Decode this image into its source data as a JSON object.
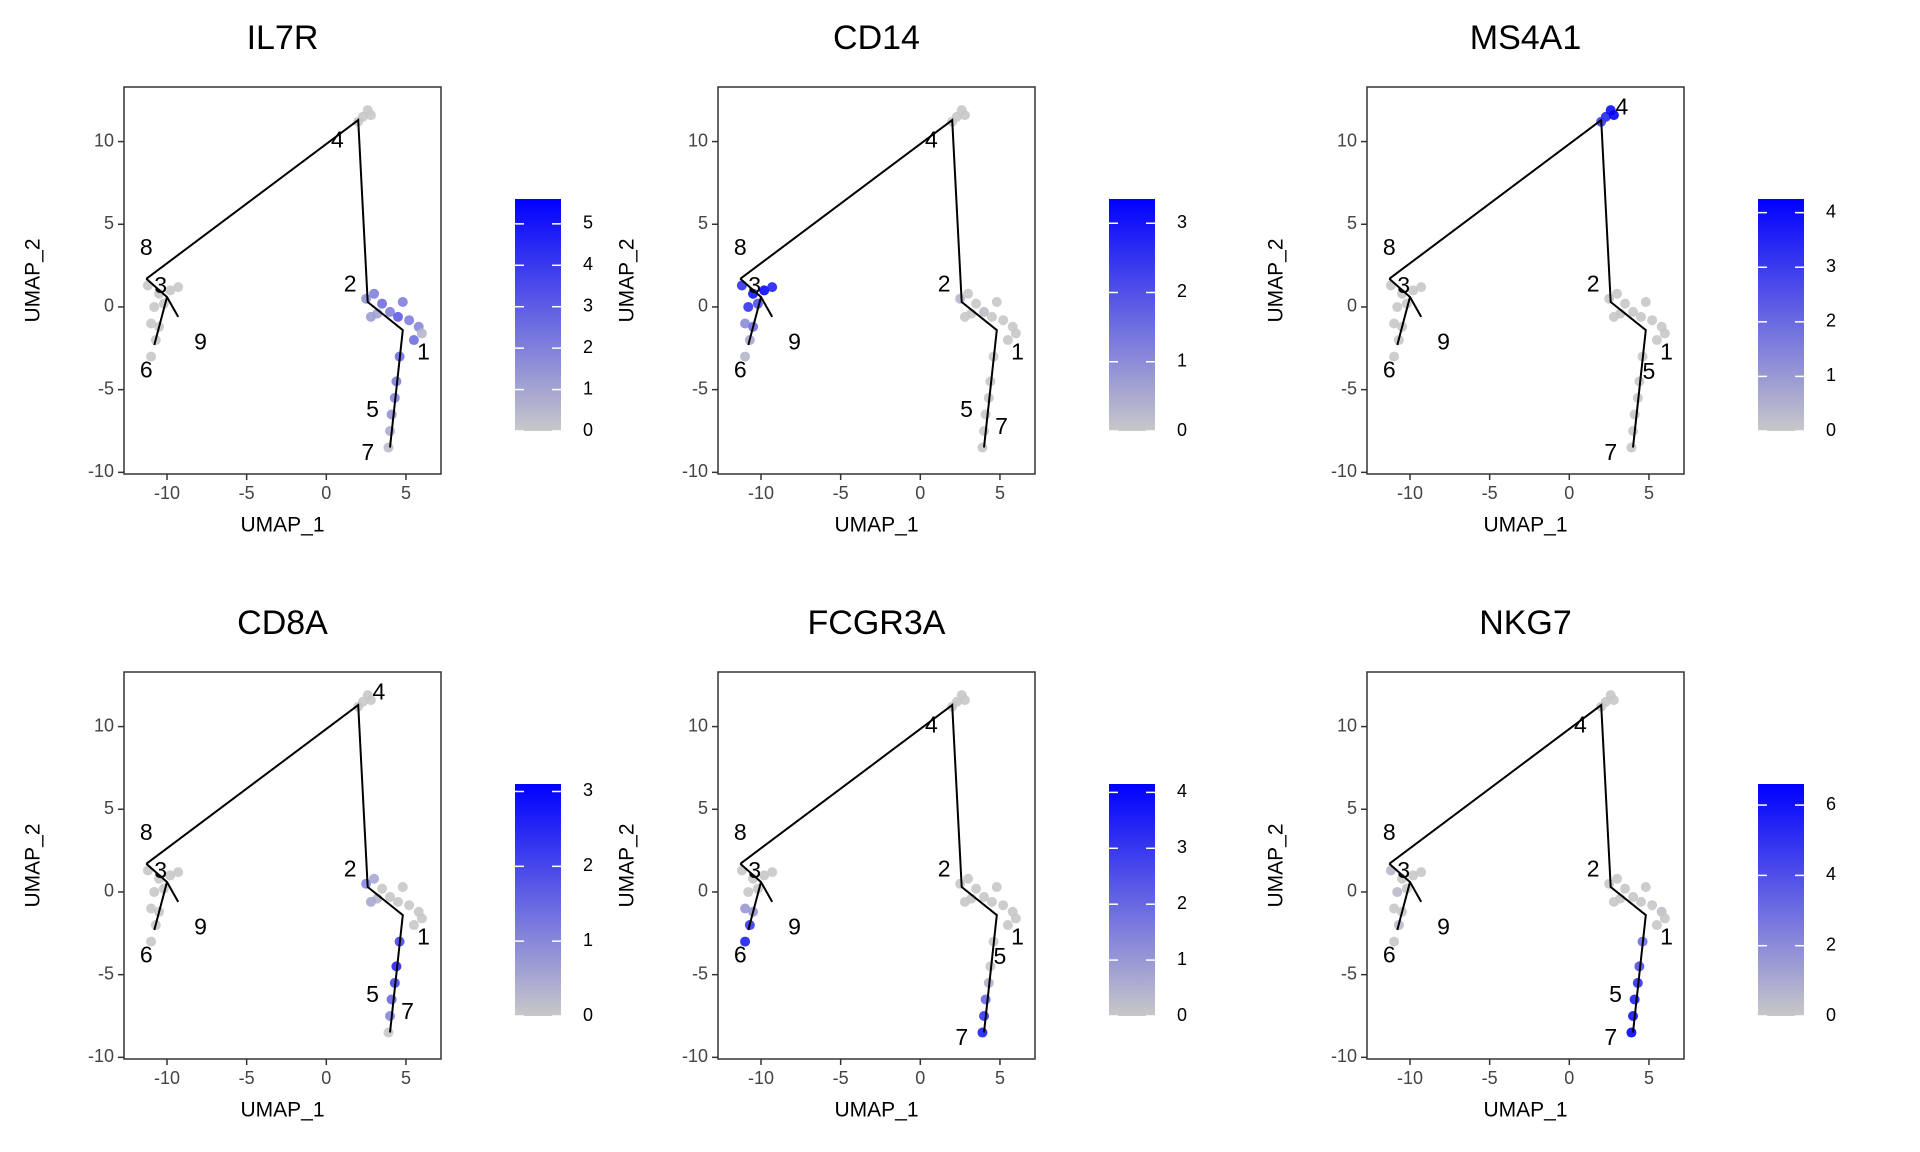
{
  "chart_data": [
    {
      "type": "scatter",
      "title": "IL7R",
      "xlabel": "UMAP_1",
      "ylabel": "UMAP_2",
      "x": [
        -11.2,
        -10.5,
        -9.8,
        -9.3,
        -10.8,
        -10.2,
        -11,
        -10.7,
        -11,
        -10.5,
        2.3,
        2.6,
        2.0,
        2.8,
        2.5,
        3,
        3.5,
        4,
        4.5,
        5.2,
        5.8,
        5.5,
        3.2,
        4.8,
        2.8,
        6,
        4.6,
        4.4,
        4.3,
        4.1,
        4.0,
        3.9
      ],
      "y": [
        1.3,
        0.8,
        1,
        1.2,
        0,
        0.2,
        -1,
        -2,
        -3,
        -1.2,
        11.5,
        11.9,
        11.2,
        11.6,
        0.5,
        0.8,
        0.2,
        -0.3,
        -0.6,
        -0.8,
        -1.2,
        -2,
        -0.4,
        0.3,
        -0.6,
        -1.6,
        -3,
        -4.5,
        -5.5,
        -6.5,
        -7.5,
        -8.5
      ],
      "values": [
        0,
        0,
        0,
        0,
        0,
        0,
        0,
        0,
        0,
        0,
        0,
        0,
        0,
        0,
        1.5,
        2,
        2.5,
        2,
        3,
        2,
        1.8,
        2.5,
        1,
        2,
        1.2,
        0.5,
        2.5,
        2,
        1.8,
        1.5,
        0.8,
        0.3
      ],
      "xlim": [
        -12.7,
        7.2
      ],
      "ylim": [
        -10.1,
        13.3
      ],
      "xticks": [
        -10,
        -5,
        0,
        5
      ],
      "yticks": [
        -10,
        -5,
        0,
        5,
        10
      ],
      "trajectory": {
        "x": [
          -11.3,
          2,
          2.6,
          4.8,
          4,
          null,
          -11.3,
          -10,
          -9.3,
          null,
          -10,
          -10.8
        ],
        "y": [
          1.7,
          11.3,
          0.3,
          -1.4,
          -8.5,
          null,
          1.7,
          0.6,
          -0.6,
          null,
          0.6,
          -2.3
        ],
        "color": "#000000"
      },
      "annotations": [
        {
          "text": "8",
          "x": -11.3,
          "y": 3.5
        },
        {
          "text": "3",
          "x": -10.4,
          "y": 1.2
        },
        {
          "text": "9",
          "x": -7.9,
          "y": -2.2
        },
        {
          "text": "6",
          "x": -11.3,
          "y": -3.9
        },
        {
          "text": "4",
          "x": 0.7,
          "y": 10
        },
        {
          "text": "2",
          "x": 1.5,
          "y": 1.3
        },
        {
          "text": "1",
          "x": 6.1,
          "y": -2.8
        },
        {
          "text": "5",
          "x": 2.9,
          "y": -6.3
        },
        {
          "text": "7",
          "x": 2.6,
          "y": -8.9
        }
      ],
      "colorbar": {
        "lim": [
          0,
          5.6
        ],
        "ticks": [
          0,
          1,
          2,
          3,
          4,
          5
        ],
        "low": "#c8c8c8",
        "high": "#0000ff"
      }
    },
    {
      "type": "scatter",
      "title": "CD14",
      "xlabel": "UMAP_1",
      "ylabel": "UMAP_2",
      "x": [
        -11.2,
        -10.5,
        -9.8,
        -9.3,
        -10.8,
        -10.2,
        -11,
        -10.7,
        -11,
        -10.5,
        2.3,
        2.6,
        2.0,
        2.8,
        2.5,
        3,
        3.5,
        4,
        4.5,
        5.2,
        5.8,
        5.5,
        3.2,
        4.8,
        2.8,
        6,
        4.6,
        4.4,
        4.3,
        4.1,
        4.0,
        3.9
      ],
      "y": [
        1.3,
        0.8,
        1,
        1.2,
        0,
        0.2,
        -1,
        -2,
        -3,
        -1.2,
        11.5,
        11.9,
        11.2,
        11.6,
        0.5,
        0.8,
        0.2,
        -0.3,
        -0.6,
        -0.8,
        -1.2,
        -2,
        -0.4,
        0.3,
        -0.6,
        -1.6,
        -3,
        -4.5,
        -5.5,
        -6.5,
        -7.5,
        -8.5
      ],
      "values": [
        2.5,
        3,
        3.2,
        2.8,
        2.5,
        2,
        1,
        0.5,
        0.3,
        1.5,
        0,
        0,
        0,
        0,
        0.3,
        0,
        0,
        0.2,
        0,
        0,
        0,
        0,
        0,
        0,
        0,
        0,
        0,
        0,
        0,
        0,
        0,
        0
      ],
      "xlim": [
        -12.7,
        7.2
      ],
      "ylim": [
        -10.1,
        13.3
      ],
      "xticks": [
        -10,
        -5,
        0,
        5
      ],
      "yticks": [
        -10,
        -5,
        0,
        5,
        10
      ],
      "trajectory": {
        "x": [
          -11.3,
          2,
          2.6,
          4.8,
          4,
          null,
          -11.3,
          -10,
          -9.3,
          null,
          -10,
          -10.8
        ],
        "y": [
          1.7,
          11.3,
          0.3,
          -1.4,
          -8.5,
          null,
          1.7,
          0.6,
          -0.6,
          null,
          0.6,
          -2.3
        ],
        "color": "#000000"
      },
      "annotations": [
        {
          "text": "8",
          "x": -11.3,
          "y": 3.5
        },
        {
          "text": "3",
          "x": -10.4,
          "y": 1.2
        },
        {
          "text": "9",
          "x": -7.9,
          "y": -2.2
        },
        {
          "text": "6",
          "x": -11.3,
          "y": -3.9
        },
        {
          "text": "4",
          "x": 0.7,
          "y": 10
        },
        {
          "text": "2",
          "x": 1.5,
          "y": 1.3
        },
        {
          "text": "1",
          "x": 6.1,
          "y": -2.8
        },
        {
          "text": "5",
          "x": 2.9,
          "y": -6.3
        },
        {
          "text": "7",
          "x": 5.1,
          "y": -7.3
        }
      ],
      "colorbar": {
        "lim": [
          0,
          3.35
        ],
        "ticks": [
          0,
          1,
          2,
          3
        ],
        "low": "#c8c8c8",
        "high": "#0000ff"
      }
    },
    {
      "type": "scatter",
      "title": "MS4A1",
      "xlabel": "UMAP_1",
      "ylabel": "UMAP_2",
      "x": [
        -11.2,
        -10.5,
        -9.8,
        -9.3,
        -10.8,
        -10.2,
        -11,
        -10.7,
        -11,
        -10.5,
        2.3,
        2.6,
        2.0,
        2.8,
        2.5,
        3,
        3.5,
        4,
        4.5,
        5.2,
        5.8,
        5.5,
        3.2,
        4.8,
        2.8,
        6,
        4.6,
        4.4,
        4.3,
        4.1,
        4.0,
        3.9
      ],
      "y": [
        1.3,
        0.8,
        1,
        1.2,
        0,
        0.2,
        -1,
        -2,
        -3,
        -1.2,
        11.5,
        11.9,
        11.2,
        11.6,
        0.5,
        0.8,
        0.2,
        -0.3,
        -0.6,
        -0.8,
        -1.2,
        -2,
        -0.4,
        0.3,
        -0.6,
        -1.6,
        -3,
        -4.5,
        -5.5,
        -6.5,
        -7.5,
        -8.5
      ],
      "values": [
        0,
        0,
        0,
        0,
        0,
        0,
        0,
        0,
        0,
        0,
        3.5,
        4,
        3,
        4.2,
        0,
        0,
        0,
        0,
        0,
        0,
        0,
        0,
        0,
        0,
        0,
        0,
        0,
        0,
        0,
        0,
        0,
        0
      ],
      "xlim": [
        -12.7,
        7.2
      ],
      "ylim": [
        -10.1,
        13.3
      ],
      "xticks": [
        -10,
        -5,
        0,
        5
      ],
      "yticks": [
        -10,
        -5,
        0,
        5,
        10
      ],
      "trajectory": {
        "x": [
          -11.3,
          2,
          2.6,
          4.8,
          4,
          null,
          -11.3,
          -10,
          -9.3,
          null,
          -10,
          -10.8
        ],
        "y": [
          1.7,
          11.3,
          0.3,
          -1.4,
          -8.5,
          null,
          1.7,
          0.6,
          -0.6,
          null,
          0.6,
          -2.3
        ],
        "color": "#000000"
      },
      "annotations": [
        {
          "text": "8",
          "x": -11.3,
          "y": 3.5
        },
        {
          "text": "3",
          "x": -10.4,
          "y": 1.2
        },
        {
          "text": "9",
          "x": -7.9,
          "y": -2.2
        },
        {
          "text": "6",
          "x": -11.3,
          "y": -3.9
        },
        {
          "text": "4",
          "x": 3.3,
          "y": 12
        },
        {
          "text": "2",
          "x": 1.5,
          "y": 1.3
        },
        {
          "text": "1",
          "x": 6.1,
          "y": -2.8
        },
        {
          "text": "5",
          "x": 5,
          "y": -4
        },
        {
          "text": "7",
          "x": 2.6,
          "y": -8.9
        }
      ],
      "colorbar": {
        "lim": [
          0,
          4.25
        ],
        "ticks": [
          0,
          1,
          2,
          3,
          4
        ],
        "low": "#c8c8c8",
        "high": "#0000ff"
      }
    },
    {
      "type": "scatter",
      "title": "CD8A",
      "xlabel": "UMAP_1",
      "ylabel": "UMAP_2",
      "x": [
        -11.2,
        -10.5,
        -9.8,
        -9.3,
        -10.8,
        -10.2,
        -11,
        -10.7,
        -11,
        -10.5,
        2.3,
        2.6,
        2.0,
        2.8,
        2.5,
        3,
        3.5,
        4,
        4.5,
        5.2,
        5.8,
        5.5,
        3.2,
        4.8,
        2.8,
        6,
        4.6,
        4.4,
        4.3,
        4.1,
        4.0,
        3.9
      ],
      "y": [
        1.3,
        0.8,
        1,
        1.2,
        0,
        0.2,
        -1,
        -2,
        -3,
        -1.2,
        11.5,
        11.9,
        11.2,
        11.6,
        0.5,
        0.8,
        0.2,
        -0.3,
        -0.6,
        -0.8,
        -1.2,
        -2,
        -0.4,
        0.3,
        -0.6,
        -1.6,
        -3,
        -4.5,
        -5.5,
        -6.5,
        -7.5,
        -8.5
      ],
      "values": [
        0,
        0,
        0,
        0,
        0,
        0,
        0,
        0,
        0,
        0,
        0,
        0,
        0,
        0,
        1,
        0.5,
        0,
        0,
        0,
        0,
        0,
        0,
        0.3,
        0,
        0.5,
        0,
        2,
        2.5,
        2,
        1.5,
        1,
        0
      ],
      "xlim": [
        -12.7,
        7.2
      ],
      "ylim": [
        -10.1,
        13.3
      ],
      "xticks": [
        -10,
        -5,
        0,
        5
      ],
      "yticks": [
        -10,
        -5,
        0,
        5,
        10
      ],
      "trajectory": {
        "x": [
          -11.3,
          2,
          2.6,
          4.8,
          4,
          null,
          -11.3,
          -10,
          -9.3,
          null,
          -10,
          -10.8
        ],
        "y": [
          1.7,
          11.3,
          0.3,
          -1.4,
          -8.5,
          null,
          1.7,
          0.6,
          -0.6,
          null,
          0.6,
          -2.3
        ],
        "color": "#000000"
      },
      "annotations": [
        {
          "text": "8",
          "x": -11.3,
          "y": 3.5
        },
        {
          "text": "3",
          "x": -10.4,
          "y": 1.2
        },
        {
          "text": "9",
          "x": -7.9,
          "y": -2.2
        },
        {
          "text": "6",
          "x": -11.3,
          "y": -3.9
        },
        {
          "text": "4",
          "x": 3.3,
          "y": 12
        },
        {
          "text": "2",
          "x": 1.5,
          "y": 1.3
        },
        {
          "text": "1",
          "x": 6.1,
          "y": -2.8
        },
        {
          "text": "5",
          "x": 2.9,
          "y": -6.3
        },
        {
          "text": "7",
          "x": 5.1,
          "y": -7.3
        }
      ],
      "colorbar": {
        "lim": [
          0,
          3.1
        ],
        "ticks": [
          0,
          1,
          2,
          3
        ],
        "low": "#c8c8c8",
        "high": "#0000ff"
      }
    },
    {
      "type": "scatter",
      "title": "FCGR3A",
      "xlabel": "UMAP_1",
      "ylabel": "UMAP_2",
      "x": [
        -11.2,
        -10.5,
        -9.8,
        -9.3,
        -10.8,
        -10.2,
        -11,
        -10.7,
        -11,
        -10.5,
        2.3,
        2.6,
        2.0,
        2.8,
        2.5,
        3,
        3.5,
        4,
        4.5,
        5.2,
        5.8,
        5.5,
        3.2,
        4.8,
        2.8,
        6,
        4.6,
        4.4,
        4.3,
        4.1,
        4.0,
        3.9
      ],
      "y": [
        1.3,
        0.8,
        1,
        1.2,
        0,
        0.2,
        -1,
        -2,
        -3,
        -1.2,
        11.5,
        11.9,
        11.2,
        11.6,
        0.5,
        0.8,
        0.2,
        -0.3,
        -0.6,
        -0.8,
        -1.2,
        -2,
        -0.4,
        0.3,
        -0.6,
        -1.6,
        -3,
        -4.5,
        -5.5,
        -6.5,
        -7.5,
        -8.5
      ],
      "values": [
        0,
        0,
        0,
        0,
        0,
        0,
        1,
        3,
        3.5,
        1,
        0,
        0,
        0,
        0,
        0,
        0,
        0,
        0,
        0,
        0,
        0,
        0,
        0,
        0,
        0,
        0,
        0,
        0,
        0.5,
        2,
        3,
        3.5
      ],
      "xlim": [
        -12.7,
        7.2
      ],
      "ylim": [
        -10.1,
        13.3
      ],
      "xticks": [
        -10,
        -5,
        0,
        5
      ],
      "yticks": [
        -10,
        -5,
        0,
        5,
        10
      ],
      "trajectory": {
        "x": [
          -11.3,
          2,
          2.6,
          4.8,
          4,
          null,
          -11.3,
          -10,
          -9.3,
          null,
          -10,
          -10.8
        ],
        "y": [
          1.7,
          11.3,
          0.3,
          -1.4,
          -8.5,
          null,
          1.7,
          0.6,
          -0.6,
          null,
          0.6,
          -2.3
        ],
        "color": "#000000"
      },
      "annotations": [
        {
          "text": "8",
          "x": -11.3,
          "y": 3.5
        },
        {
          "text": "3",
          "x": -10.4,
          "y": 1.2
        },
        {
          "text": "9",
          "x": -7.9,
          "y": -2.2
        },
        {
          "text": "6",
          "x": -11.3,
          "y": -3.9
        },
        {
          "text": "4",
          "x": 0.7,
          "y": 10
        },
        {
          "text": "2",
          "x": 1.5,
          "y": 1.3
        },
        {
          "text": "1",
          "x": 6.1,
          "y": -2.8
        },
        {
          "text": "5",
          "x": 5,
          "y": -4
        },
        {
          "text": "7",
          "x": 2.6,
          "y": -8.9
        }
      ],
      "colorbar": {
        "lim": [
          0,
          4.15
        ],
        "ticks": [
          0,
          1,
          2,
          3,
          4
        ],
        "low": "#c8c8c8",
        "high": "#0000ff"
      }
    },
    {
      "type": "scatter",
      "title": "NKG7",
      "xlabel": "UMAP_1",
      "ylabel": "UMAP_2",
      "x": [
        -11.2,
        -10.5,
        -9.8,
        -9.3,
        -10.8,
        -10.2,
        -11,
        -10.7,
        -11,
        -10.5,
        2.3,
        2.6,
        2.0,
        2.8,
        2.5,
        3,
        3.5,
        4,
        4.5,
        5.2,
        5.8,
        5.5,
        3.2,
        4.8,
        2.8,
        6,
        4.6,
        4.4,
        4.3,
        4.1,
        4.0,
        3.9
      ],
      "y": [
        1.3,
        0.8,
        1,
        1.2,
        0,
        0.2,
        -1,
        -2,
        -3,
        -1.2,
        11.5,
        11.9,
        11.2,
        11.6,
        0.5,
        0.8,
        0.2,
        -0.3,
        -0.6,
        -0.8,
        -1.2,
        -2,
        -0.4,
        0.3,
        -0.6,
        -1.6,
        -3,
        -4.5,
        -5.5,
        -6.5,
        -7.5,
        -8.5
      ],
      "values": [
        0.5,
        0,
        0,
        0,
        0.5,
        0,
        0,
        0.5,
        0,
        0,
        0,
        0,
        0,
        0,
        0,
        0,
        0,
        0,
        0,
        0,
        0.3,
        0,
        0,
        0,
        0,
        0,
        3,
        4,
        5,
        5.5,
        6,
        6.5
      ],
      "xlim": [
        -12.7,
        7.2
      ],
      "ylim": [
        -10.1,
        13.3
      ],
      "xticks": [
        -10,
        -5,
        0,
        5
      ],
      "yticks": [
        -10,
        -5,
        0,
        5,
        10
      ],
      "trajectory": {
        "x": [
          -11.3,
          2,
          2.6,
          4.8,
          4,
          null,
          -11.3,
          -10,
          -9.3,
          null,
          -10,
          -10.8
        ],
        "y": [
          1.7,
          11.3,
          0.3,
          -1.4,
          -8.5,
          null,
          1.7,
          0.6,
          -0.6,
          null,
          0.6,
          -2.3
        ],
        "color": "#000000"
      },
      "annotations": [
        {
          "text": "8",
          "x": -11.3,
          "y": 3.5
        },
        {
          "text": "3",
          "x": -10.4,
          "y": 1.2
        },
        {
          "text": "9",
          "x": -7.9,
          "y": -2.2
        },
        {
          "text": "6",
          "x": -11.3,
          "y": -3.9
        },
        {
          "text": "4",
          "x": 0.7,
          "y": 10
        },
        {
          "text": "2",
          "x": 1.5,
          "y": 1.3
        },
        {
          "text": "1",
          "x": 6.1,
          "y": -2.8
        },
        {
          "text": "5",
          "x": 2.9,
          "y": -6.3
        },
        {
          "text": "7",
          "x": 2.6,
          "y": -8.9
        }
      ],
      "colorbar": {
        "lim": [
          0,
          6.6
        ],
        "ticks": [
          0,
          2,
          4,
          6
        ],
        "low": "#c8c8c8",
        "high": "#0000ff"
      }
    }
  ]
}
